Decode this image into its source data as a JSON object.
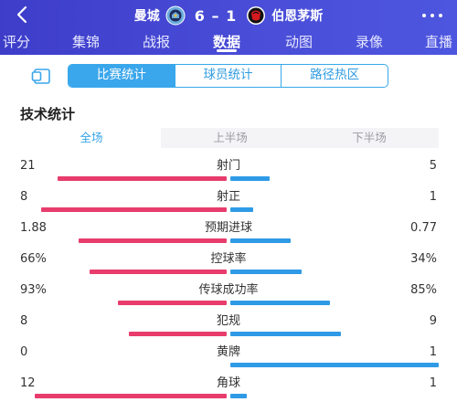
{
  "header": {
    "home_team": "曼城",
    "score": "6 – 1",
    "away_team": "伯恩茅斯",
    "back_icon": "chevron-left-icon",
    "more_icon": "more-dots-icon"
  },
  "tabs": [
    {
      "label": "评分",
      "active": false
    },
    {
      "label": "集锦",
      "active": false
    },
    {
      "label": "战报",
      "active": false
    },
    {
      "label": "数据",
      "active": true
    },
    {
      "label": "动图",
      "active": false
    },
    {
      "label": "录像",
      "active": false
    },
    {
      "label": "直播",
      "active": false
    }
  ],
  "segments": [
    {
      "label": "比赛统计",
      "active": true
    },
    {
      "label": "球员统计",
      "active": false
    },
    {
      "label": "路径热区",
      "active": false
    }
  ],
  "section_title": "技术统计",
  "period_tabs": [
    {
      "label": "全场",
      "active": true
    },
    {
      "label": "上半场",
      "active": false
    },
    {
      "label": "下半场",
      "active": false
    }
  ],
  "stats": [
    {
      "label": "射门",
      "home": "21",
      "away": "5",
      "home_share": 0.81,
      "away_share": 0.19
    },
    {
      "label": "射正",
      "home": "8",
      "away": "1",
      "home_share": 0.89,
      "away_share": 0.11
    },
    {
      "label": "预期进球",
      "home": "1.88",
      "away": "0.77",
      "home_share": 0.71,
      "away_share": 0.29
    },
    {
      "label": "控球率",
      "home": "66%",
      "away": "34%",
      "home_share": 0.66,
      "away_share": 0.34
    },
    {
      "label": "传球成功率",
      "home": "93%",
      "away": "85%",
      "home_share": 0.52,
      "away_share": 0.48
    },
    {
      "label": "犯规",
      "home": "8",
      "away": "9",
      "home_share": 0.47,
      "away_share": 0.53
    },
    {
      "label": "黄牌",
      "home": "0",
      "away": "1",
      "home_share": 0.0,
      "away_share": 1.0
    },
    {
      "label": "角球",
      "home": "12",
      "away": "1",
      "home_share": 0.92,
      "away_share": 0.08
    }
  ],
  "colors": {
    "header_bg": "#4248d2",
    "accent_blue": "#3aa6ec",
    "home_bar": "#e83c6d",
    "away_bar": "#2f9ae6"
  }
}
